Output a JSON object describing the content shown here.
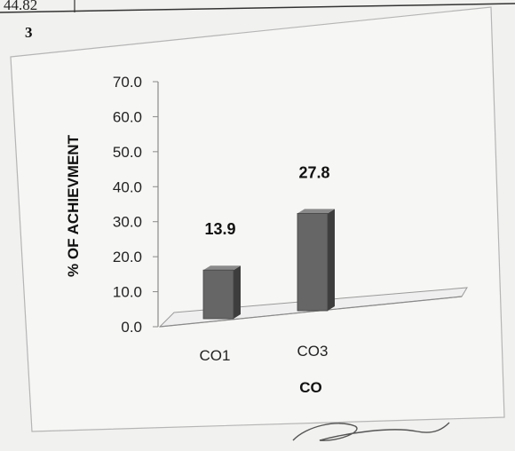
{
  "header": {
    "top_value": "44.82",
    "section_number": "3"
  },
  "chart_data": {
    "type": "bar",
    "categories": [
      "CO1",
      "CO3"
    ],
    "values": [
      13.9,
      27.8
    ],
    "data_labels": [
      "13.9",
      "27.8"
    ],
    "title": "",
    "xlabel": "CO",
    "ylabel": "% OF ACHIEVMENT",
    "ylim": [
      0,
      70
    ],
    "yticks": [
      "0.0",
      "10.0",
      "20.0",
      "30.0",
      "40.0",
      "50.0",
      "60.0",
      "70.0"
    ],
    "grid": false,
    "legend": "none",
    "bar_color": "#666666",
    "style": "3d-column"
  }
}
